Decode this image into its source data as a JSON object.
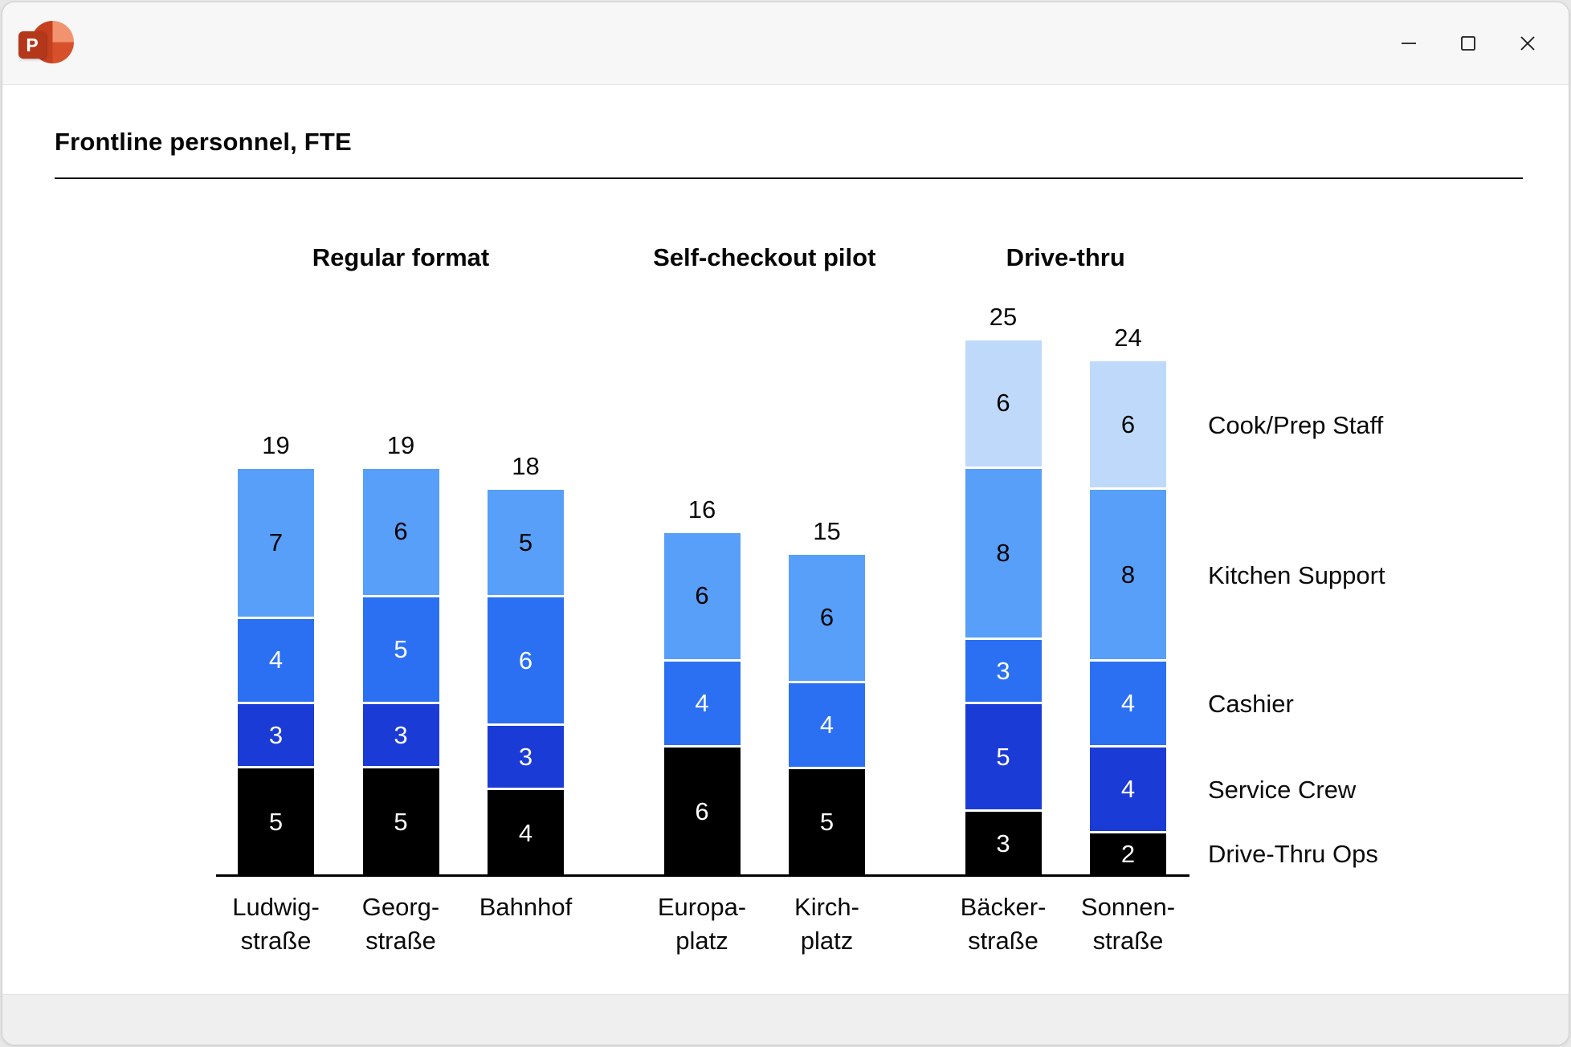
{
  "window": {
    "app_icon": "powerpoint-icon",
    "app_icon_letter": "P",
    "controls": [
      "minimize",
      "maximize",
      "close"
    ]
  },
  "chart_data": {
    "type": "stacked-bar",
    "title": "Frontline personnel, FTE",
    "unit": "FTE",
    "grid": false,
    "legend_position": "right",
    "series": [
      {
        "key": "cook",
        "label": "Cook/Prep Staff",
        "color": "#BFD9FA",
        "label_color": "#000000"
      },
      {
        "key": "kitchen",
        "label": "Kitchen Support",
        "color": "#579FF8",
        "label_color": "#000000"
      },
      {
        "key": "cashier",
        "label": "Cashier",
        "color": "#2B70F2",
        "label_color": "#FFFFFF"
      },
      {
        "key": "service",
        "label": "Service Crew",
        "color": "#1B3BD6",
        "label_color": "#FFFFFF"
      },
      {
        "key": "ops",
        "label": "Drive-Thru Ops",
        "color": "#000000",
        "label_color": "#FFFFFF"
      }
    ],
    "stack_order_bottom_to_top": [
      "ops",
      "service",
      "cashier",
      "kitchen",
      "cook"
    ],
    "groups": [
      {
        "label": "Regular format",
        "bars": [
          {
            "name": "Ludwig-\nstraße",
            "total": 19,
            "segments": {
              "ops": 5,
              "service": 3,
              "cashier": 4,
              "kitchen": 7
            }
          },
          {
            "name": "Georg-\nstraße",
            "total": 19,
            "segments": {
              "ops": 5,
              "service": 3,
              "cashier": 5,
              "kitchen": 6
            }
          },
          {
            "name": "Bahnhof",
            "total": 18,
            "segments": {
              "ops": 4,
              "service": 3,
              "cashier": 6,
              "kitchen": 5
            }
          }
        ]
      },
      {
        "label": "Self-checkout pilot",
        "bars": [
          {
            "name": "Europa-\nplatz",
            "total": 16,
            "segments": {
              "ops": 6,
              "cashier": 4,
              "kitchen": 6
            }
          },
          {
            "name": "Kirch-\nplatz",
            "total": 15,
            "segments": {
              "ops": 5,
              "cashier": 4,
              "kitchen": 6
            }
          }
        ]
      },
      {
        "label": "Drive-thru",
        "bars": [
          {
            "name": "Bäcker-\nstraße",
            "total": 25,
            "segments": {
              "ops": 3,
              "service": 5,
              "cashier": 3,
              "kitchen": 8,
              "cook": 6
            }
          },
          {
            "name": "Sonnen-\nstraße",
            "total": 24,
            "segments": {
              "ops": 2,
              "service": 4,
              "cashier": 4,
              "kitchen": 8,
              "cook": 6
            }
          }
        ]
      }
    ],
    "legend_aligned_to_last_bar": true
  }
}
